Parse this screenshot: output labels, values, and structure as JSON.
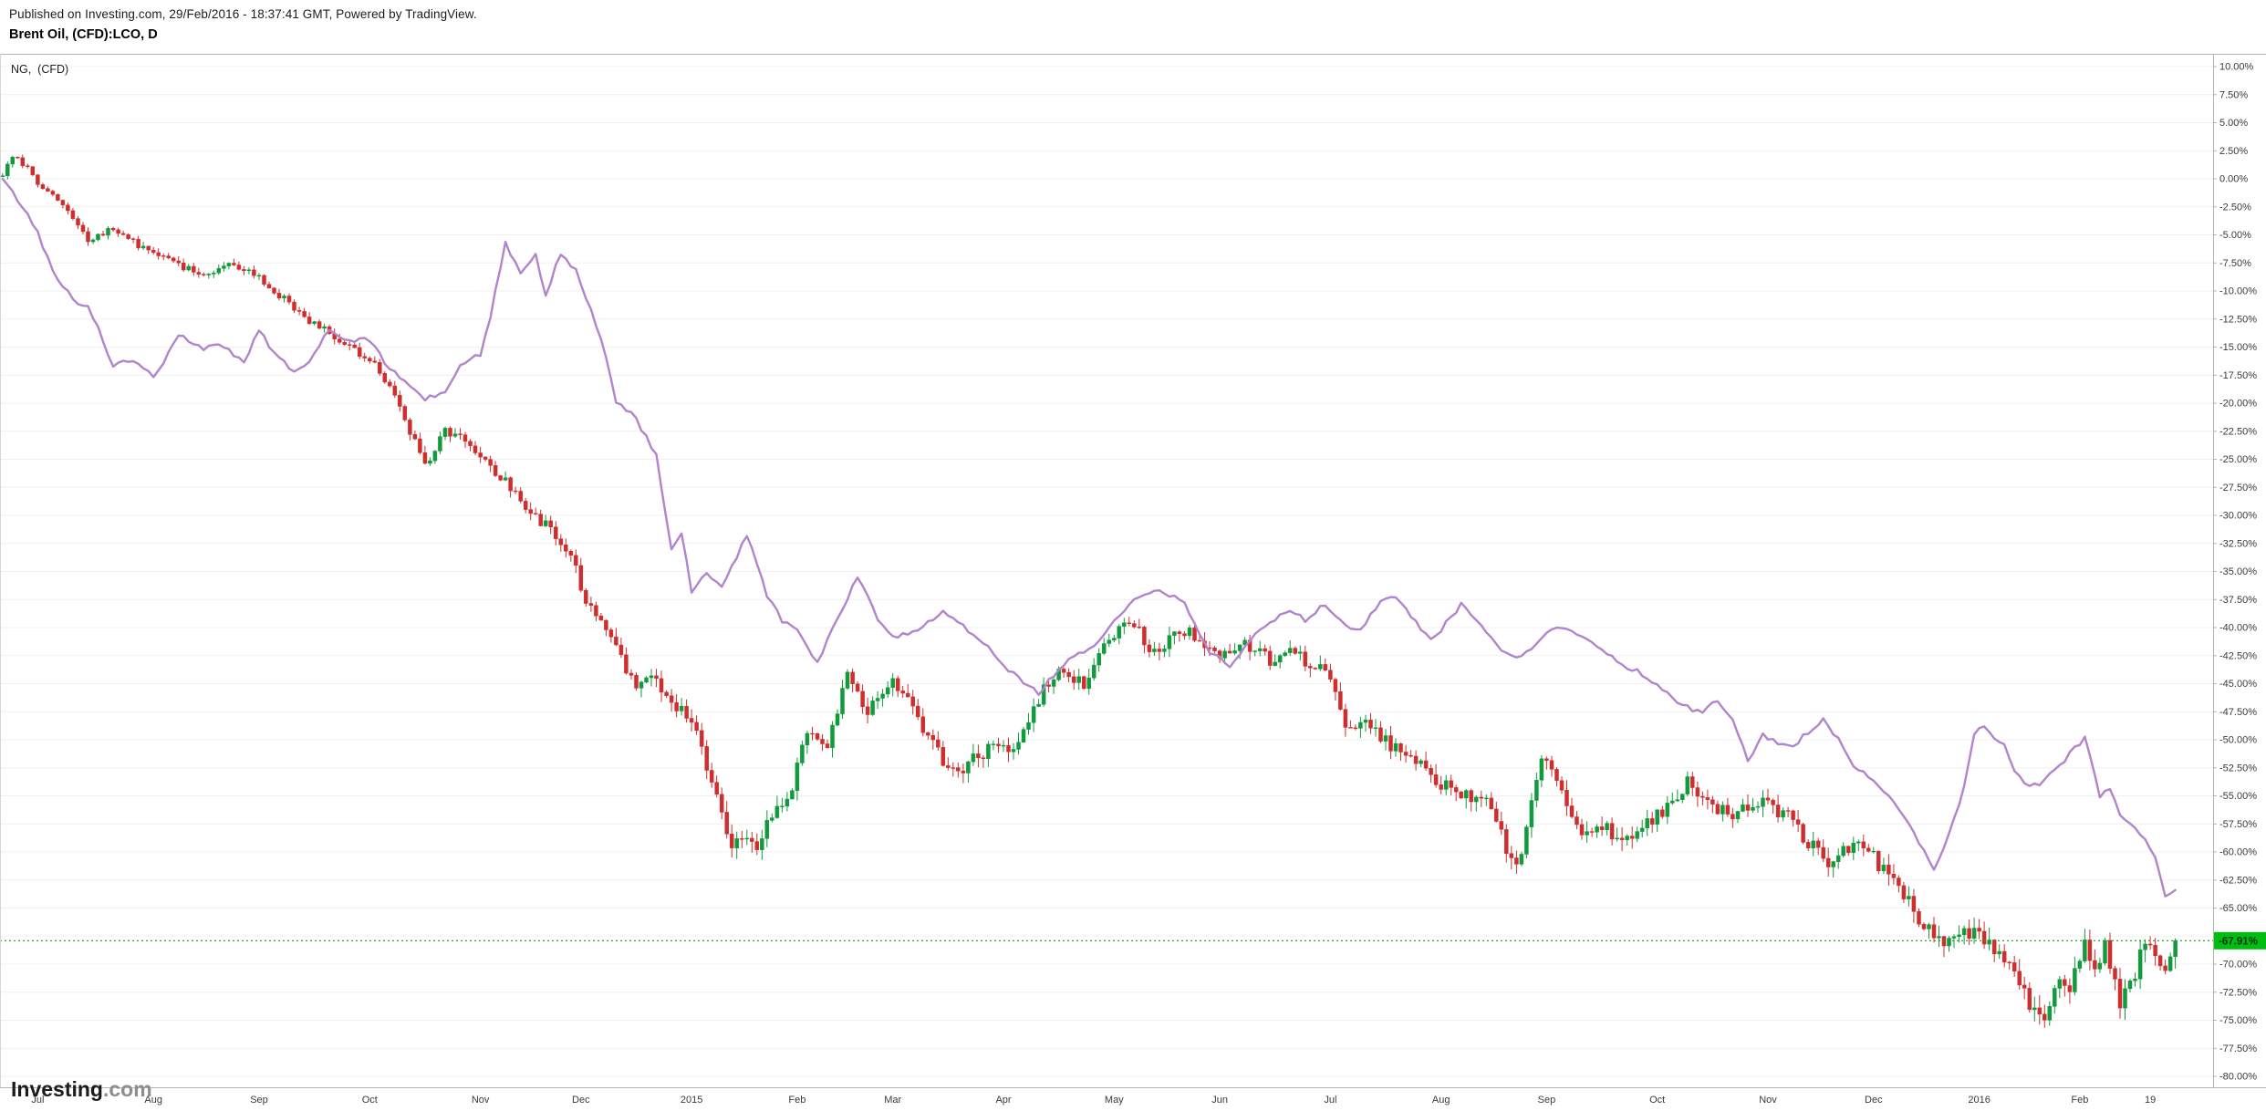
{
  "header": {
    "published_line": "Published on Investing.com, 29/Feb/2016 - 18:37:41 GMT, Powered by TradingView.",
    "instrument_line": "Brent Oil, (CFD):LCO, D"
  },
  "legend": {
    "label": "NG,  (CFD)"
  },
  "logo": {
    "main": "Investing",
    "suffix": ".com"
  },
  "chart_data": {
    "type": "candlestick+line",
    "title": "Brent Oil, (CFD):LCO, D — percent change vs NG, (CFD)",
    "grid": "horizontal-faint",
    "legend_position": "top-left",
    "y_axis": {
      "side": "right",
      "min": -80,
      "max": 10,
      "step": 2.5,
      "unit": "%",
      "tick_labels": [
        "10.00%",
        "7.50%",
        "5.00%",
        "2.50%",
        "0.00%",
        "-2.50%",
        "-5.00%",
        "-7.50%",
        "-10.00%",
        "-12.50%",
        "-15.00%",
        "-17.50%",
        "-20.00%",
        "-22.50%",
        "-25.00%",
        "-27.50%",
        "-30.00%",
        "-32.50%",
        "-35.00%",
        "-37.50%",
        "-40.00%",
        "-42.50%",
        "-45.00%",
        "-47.50%",
        "-50.00%",
        "-52.50%",
        "-55.00%",
        "-57.50%",
        "-60.00%",
        "-62.50%",
        "-65.00%",
        "-67.50%",
        "-70.00%",
        "-72.50%",
        "-75.00%",
        "-77.50%",
        "-80.00%"
      ]
    },
    "x_axis": {
      "total_days": 433,
      "right_pad_days": 7,
      "tick_labels": [
        "Jul",
        "Aug",
        "Sep",
        "Oct",
        "Nov",
        "Dec",
        "2015",
        "Feb",
        "Mar",
        "Apr",
        "May",
        "Jun",
        "Jul",
        "Aug",
        "Sep",
        "Oct",
        "Nov",
        "Dec",
        "2016",
        "Feb",
        "19"
      ],
      "tick_days": [
        7,
        30,
        51,
        73,
        95,
        115,
        137,
        158,
        177,
        199,
        221,
        242,
        264,
        286,
        307,
        329,
        351,
        372,
        393,
        413,
        427
      ]
    },
    "last_price": {
      "value": -67.91,
      "label": "-67.91%",
      "bg": "#00bd12",
      "line_color": "#00a50f"
    },
    "series": [
      {
        "name": "Brent Oil (CFD):LCO, daily, % change",
        "type": "candlestick",
        "up_color": "#119b3c",
        "down_color": "#d02e2e",
        "keypoints_pct": [
          [
            0,
            0.3
          ],
          [
            2,
            1.8
          ],
          [
            5,
            0.8
          ],
          [
            7,
            -0.5
          ],
          [
            12,
            -2.2
          ],
          [
            17,
            -5.8
          ],
          [
            22,
            -4.6
          ],
          [
            26,
            -5.5
          ],
          [
            30,
            -6.8
          ],
          [
            36,
            -7.8
          ],
          [
            40,
            -8.1
          ],
          [
            45,
            -7.4
          ],
          [
            51,
            -8.6
          ],
          [
            56,
            -10.5
          ],
          [
            61,
            -13.0
          ],
          [
            66,
            -14.2
          ],
          [
            73,
            -16.3
          ],
          [
            78,
            -19.5
          ],
          [
            84,
            -25.5
          ],
          [
            88,
            -22.5
          ],
          [
            95,
            -24.3
          ],
          [
            100,
            -26.5
          ],
          [
            105,
            -30.0
          ],
          [
            110,
            -31.5
          ],
          [
            113,
            -33.0
          ],
          [
            116,
            -37.8
          ],
          [
            120,
            -40.5
          ],
          [
            126,
            -45.8
          ],
          [
            129,
            -44.0
          ],
          [
            133,
            -47.0
          ],
          [
            137,
            -49.1
          ],
          [
            141,
            -53.5
          ],
          [
            145,
            -58.6
          ],
          [
            150,
            -59.8
          ],
          [
            153,
            -56.5
          ],
          [
            157,
            -53.0
          ],
          [
            160,
            -48.4
          ],
          [
            164,
            -50.5
          ],
          [
            168,
            -44.4
          ],
          [
            172,
            -47.2
          ],
          [
            177,
            -45.5
          ],
          [
            181,
            -48.0
          ],
          [
            186,
            -51.4
          ],
          [
            190,
            -53.3
          ],
          [
            197,
            -51.0
          ],
          [
            201,
            -50.0
          ],
          [
            206,
            -46.5
          ],
          [
            210,
            -43.2
          ],
          [
            215,
            -44.5
          ],
          [
            220,
            -40.6
          ],
          [
            225,
            -39.7
          ],
          [
            229,
            -42.0
          ],
          [
            234,
            -40.5
          ],
          [
            238,
            -41.7
          ],
          [
            242,
            -42.8
          ],
          [
            247,
            -41.5
          ],
          [
            252,
            -43.5
          ],
          [
            257,
            -42.0
          ],
          [
            263,
            -43.5
          ],
          [
            267,
            -49.0
          ],
          [
            272,
            -48.0
          ],
          [
            277,
            -50.5
          ],
          [
            284,
            -53.6
          ],
          [
            290,
            -54.5
          ],
          [
            295,
            -56.1
          ],
          [
            301,
            -62.0
          ],
          [
            306,
            -51.8
          ],
          [
            310,
            -55.5
          ],
          [
            314,
            -58.0
          ],
          [
            318,
            -57.0
          ],
          [
            322,
            -58.5
          ],
          [
            328,
            -57.0
          ],
          [
            332,
            -54.5
          ],
          [
            335,
            -53.2
          ],
          [
            339,
            -55.5
          ],
          [
            343,
            -57.0
          ],
          [
            347,
            -55.5
          ],
          [
            350,
            -55.9
          ],
          [
            354,
            -57.5
          ],
          [
            358,
            -59.0
          ],
          [
            362,
            -60.5
          ],
          [
            365,
            -61.0
          ],
          [
            368,
            -60.0
          ],
          [
            372,
            -60.5
          ],
          [
            376,
            -62.0
          ],
          [
            379,
            -63.5
          ],
          [
            382,
            -66.3
          ],
          [
            387,
            -67.9
          ],
          [
            390,
            -66.5
          ],
          [
            393,
            -66.8
          ],
          [
            396,
            -68.5
          ],
          [
            398,
            -70.2
          ],
          [
            401,
            -72.5
          ],
          [
            404,
            -74.2
          ],
          [
            406,
            -75.8
          ],
          [
            409,
            -71.4
          ],
          [
            411,
            -73.0
          ],
          [
            414,
            -69.2
          ],
          [
            416,
            -70.5
          ],
          [
            418,
            -68.9
          ],
          [
            421,
            -73.2
          ],
          [
            424,
            -71.0
          ],
          [
            426,
            -68.5
          ],
          [
            428,
            -69.8
          ],
          [
            430,
            -70.5
          ],
          [
            432,
            -67.91
          ]
        ]
      },
      {
        "name": "NG (CFD), % change",
        "type": "line",
        "color": "#b184cc",
        "keypoints_pct": [
          [
            0,
            0
          ],
          [
            3,
            -2.0
          ],
          [
            5,
            -3.5
          ],
          [
            7,
            -5.0
          ],
          [
            10,
            -8.0
          ],
          [
            12,
            -9.5
          ],
          [
            15,
            -10.8
          ],
          [
            17,
            -11.5
          ],
          [
            20,
            -14.5
          ],
          [
            22,
            -17.0
          ],
          [
            26,
            -16.0
          ],
          [
            30,
            -17.5
          ],
          [
            33,
            -15.5
          ],
          [
            35,
            -14.0
          ],
          [
            40,
            -15.5
          ],
          [
            43,
            -14.6
          ],
          [
            45,
            -15.0
          ],
          [
            48,
            -16.2
          ],
          [
            51,
            -13.5
          ],
          [
            54,
            -15.8
          ],
          [
            58,
            -17.5
          ],
          [
            61,
            -16.0
          ],
          [
            65,
            -13.2
          ],
          [
            68,
            -14.5
          ],
          [
            73,
            -14.5
          ],
          [
            76,
            -16.5
          ],
          [
            80,
            -18.0
          ],
          [
            84,
            -19.5
          ],
          [
            88,
            -19.3
          ],
          [
            91,
            -17.0
          ],
          [
            95,
            -15.5
          ],
          [
            97,
            -12.0
          ],
          [
            100,
            -5.5
          ],
          [
            103,
            -8.5
          ],
          [
            106,
            -7.0
          ],
          [
            108,
            -10.5
          ],
          [
            111,
            -6.5
          ],
          [
            114,
            -8.0
          ],
          [
            117,
            -11.5
          ],
          [
            120,
            -16.0
          ],
          [
            122,
            -20.0
          ],
          [
            126,
            -21.5
          ],
          [
            130,
            -24.5
          ],
          [
            133,
            -33.0
          ],
          [
            135,
            -31.5
          ],
          [
            137,
            -36.9
          ],
          [
            140,
            -35.5
          ],
          [
            143,
            -36.5
          ],
          [
            148,
            -31.5
          ],
          [
            152,
            -37.0
          ],
          [
            155,
            -39.5
          ],
          [
            158,
            -40.5
          ],
          [
            162,
            -43.0
          ],
          [
            166,
            -39.0
          ],
          [
            170,
            -35.5
          ],
          [
            174,
            -39.5
          ],
          [
            177,
            -41.0
          ],
          [
            182,
            -40.0
          ],
          [
            187,
            -38.5
          ],
          [
            192,
            -40.5
          ],
          [
            197,
            -42.0
          ],
          [
            201,
            -44.0
          ],
          [
            206,
            -46.0
          ],
          [
            212,
            -43.0
          ],
          [
            219,
            -40.5
          ],
          [
            222,
            -39.0
          ],
          [
            225,
            -37.5
          ],
          [
            230,
            -36.5
          ],
          [
            235,
            -37.5
          ],
          [
            240,
            -42.5
          ],
          [
            244,
            -43.5
          ],
          [
            250,
            -40.0
          ],
          [
            255,
            -38.5
          ],
          [
            259,
            -39.5
          ],
          [
            263,
            -38.0
          ],
          [
            267,
            -39.5
          ],
          [
            270,
            -40.0
          ],
          [
            274,
            -38.0
          ],
          [
            277,
            -37.5
          ],
          [
            281,
            -39.5
          ],
          [
            284,
            -41.0
          ],
          [
            287,
            -39.5
          ],
          [
            290,
            -38.0
          ],
          [
            294,
            -40.0
          ],
          [
            297,
            -41.5
          ],
          [
            301,
            -42.6
          ],
          [
            306,
            -41.0
          ],
          [
            309,
            -40.0
          ],
          [
            312,
            -40.5
          ],
          [
            317,
            -41.5
          ],
          [
            320,
            -42.5
          ],
          [
            323,
            -43.5
          ],
          [
            328,
            -45.0
          ],
          [
            333,
            -46.5
          ],
          [
            338,
            -47.5
          ],
          [
            341,
            -46.5
          ],
          [
            344,
            -48.5
          ],
          [
            347,
            -52.0
          ],
          [
            350,
            -49.5
          ],
          [
            353,
            -50.0
          ],
          [
            356,
            -50.5
          ],
          [
            359,
            -49.5
          ],
          [
            362,
            -48.5
          ],
          [
            365,
            -50.0
          ],
          [
            368,
            -52.0
          ],
          [
            372,
            -53.5
          ],
          [
            375,
            -55.0
          ],
          [
            377,
            -56.5
          ],
          [
            380,
            -58.5
          ],
          [
            384,
            -61.5
          ],
          [
            386,
            -59.5
          ],
          [
            388,
            -57.0
          ],
          [
            390,
            -54.0
          ],
          [
            392,
            -49.5
          ],
          [
            394,
            -49.0
          ],
          [
            396,
            -50.0
          ],
          [
            398,
            -50.5
          ],
          [
            400,
            -52.5
          ],
          [
            403,
            -54.0
          ],
          [
            406,
            -53.5
          ],
          [
            409,
            -52.5
          ],
          [
            412,
            -51.0
          ],
          [
            414,
            -50.0
          ],
          [
            417,
            -55.0
          ],
          [
            419,
            -54.0
          ],
          [
            421,
            -56.6
          ],
          [
            424,
            -57.6
          ],
          [
            426,
            -59.0
          ],
          [
            428,
            -60.7
          ],
          [
            430,
            -64.3
          ],
          [
            432,
            -63.4
          ]
        ]
      }
    ]
  }
}
